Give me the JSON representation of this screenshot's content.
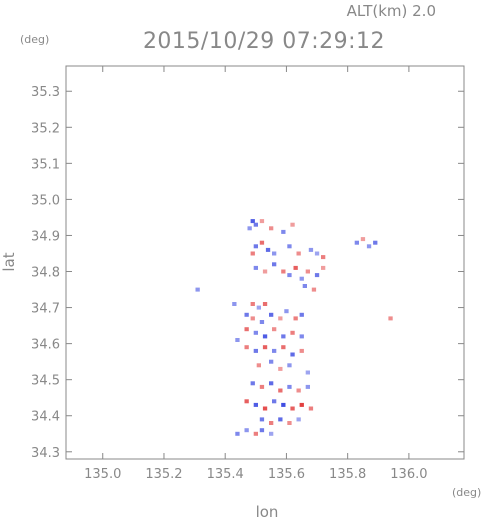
{
  "chart_data": {
    "type": "heatmap",
    "title": "2015/10/29 07:29:12",
    "subtitle": "ALT(km) 2.0",
    "xlabel": "lon",
    "ylabel": "lat",
    "xunit": "(deg)",
    "yunit": "(deg)",
    "xlim": [
      134.88,
      136.18
    ],
    "ylim": [
      34.28,
      35.37
    ],
    "xticks": [
      135.0,
      135.2,
      135.4,
      135.6,
      135.8,
      136.0
    ],
    "xtick_labels": [
      "135.0",
      "135.2",
      "135.4",
      "135.6",
      "135.8",
      "136.0"
    ],
    "yticks": [
      34.3,
      34.4,
      34.5,
      34.6,
      34.7,
      34.8,
      34.9,
      35.0,
      35.1,
      35.2,
      35.3
    ],
    "ytick_labels": [
      "34.3",
      "34.4",
      "34.5",
      "34.6",
      "34.7",
      "34.8",
      "34.9",
      "35.0",
      "35.1",
      "35.2",
      "35.3"
    ],
    "grid": false,
    "colors": {
      "positive": "#e03030",
      "negative": "#3040e0",
      "axis": "#888888"
    },
    "cell_size": [
      0.014,
      0.011
    ],
    "cells": [
      {
        "lon": 135.49,
        "lat": 34.94,
        "v": -0.8
      },
      {
        "lon": 135.5,
        "lat": 34.93,
        "v": -0.6
      },
      {
        "lon": 135.52,
        "lat": 34.94,
        "v": 0.3
      },
      {
        "lon": 135.48,
        "lat": 34.92,
        "v": -0.4
      },
      {
        "lon": 135.55,
        "lat": 34.92,
        "v": 0.4
      },
      {
        "lon": 135.59,
        "lat": 34.91,
        "v": -0.5
      },
      {
        "lon": 135.62,
        "lat": 34.93,
        "v": 0.3
      },
      {
        "lon": 135.5,
        "lat": 34.87,
        "v": -0.6
      },
      {
        "lon": 135.52,
        "lat": 34.88,
        "v": 0.6
      },
      {
        "lon": 135.54,
        "lat": 34.86,
        "v": -0.7
      },
      {
        "lon": 135.49,
        "lat": 34.85,
        "v": 0.5
      },
      {
        "lon": 135.56,
        "lat": 34.85,
        "v": -0.4
      },
      {
        "lon": 135.61,
        "lat": 34.87,
        "v": -0.5
      },
      {
        "lon": 135.64,
        "lat": 34.85,
        "v": 0.4
      },
      {
        "lon": 135.68,
        "lat": 34.86,
        "v": -0.4
      },
      {
        "lon": 135.7,
        "lat": 34.85,
        "v": -0.3
      },
      {
        "lon": 135.72,
        "lat": 34.84,
        "v": 0.5
      },
      {
        "lon": 135.5,
        "lat": 34.81,
        "v": -0.5
      },
      {
        "lon": 135.53,
        "lat": 34.8,
        "v": 0.3
      },
      {
        "lon": 135.56,
        "lat": 34.82,
        "v": -0.6
      },
      {
        "lon": 135.59,
        "lat": 34.8,
        "v": 0.5
      },
      {
        "lon": 135.61,
        "lat": 34.79,
        "v": -0.5
      },
      {
        "lon": 135.63,
        "lat": 34.81,
        "v": 0.7
      },
      {
        "lon": 135.65,
        "lat": 34.78,
        "v": -0.4
      },
      {
        "lon": 135.67,
        "lat": 34.8,
        "v": 0.4
      },
      {
        "lon": 135.7,
        "lat": 34.79,
        "v": -0.6
      },
      {
        "lon": 135.72,
        "lat": 34.81,
        "v": 0.3
      },
      {
        "lon": 135.66,
        "lat": 34.76,
        "v": -0.5
      },
      {
        "lon": 135.69,
        "lat": 34.75,
        "v": 0.4
      },
      {
        "lon": 135.83,
        "lat": 34.88,
        "v": -0.5
      },
      {
        "lon": 135.85,
        "lat": 34.89,
        "v": 0.3
      },
      {
        "lon": 135.87,
        "lat": 34.87,
        "v": -0.4
      },
      {
        "lon": 135.89,
        "lat": 34.88,
        "v": -0.6
      },
      {
        "lon": 135.31,
        "lat": 34.75,
        "v": -0.4
      },
      {
        "lon": 135.94,
        "lat": 34.67,
        "v": 0.4
      },
      {
        "lon": 135.43,
        "lat": 34.71,
        "v": -0.4
      },
      {
        "lon": 135.49,
        "lat": 34.71,
        "v": 0.5
      },
      {
        "lon": 135.51,
        "lat": 34.7,
        "v": -0.3
      },
      {
        "lon": 135.53,
        "lat": 34.71,
        "v": 0.6
      },
      {
        "lon": 135.47,
        "lat": 34.68,
        "v": -0.6
      },
      {
        "lon": 135.49,
        "lat": 34.67,
        "v": 0.4
      },
      {
        "lon": 135.52,
        "lat": 34.66,
        "v": -0.5
      },
      {
        "lon": 135.55,
        "lat": 34.68,
        "v": -0.7
      },
      {
        "lon": 135.58,
        "lat": 34.67,
        "v": 0.3
      },
      {
        "lon": 135.6,
        "lat": 34.69,
        "v": -0.4
      },
      {
        "lon": 135.63,
        "lat": 34.67,
        "v": 0.5
      },
      {
        "lon": 135.65,
        "lat": 34.68,
        "v": -0.6
      },
      {
        "lon": 135.47,
        "lat": 34.64,
        "v": 0.6
      },
      {
        "lon": 135.5,
        "lat": 34.63,
        "v": -0.5
      },
      {
        "lon": 135.53,
        "lat": 34.62,
        "v": -0.8
      },
      {
        "lon": 135.56,
        "lat": 34.64,
        "v": 0.4
      },
      {
        "lon": 135.59,
        "lat": 34.62,
        "v": -0.6
      },
      {
        "lon": 135.62,
        "lat": 34.63,
        "v": 0.5
      },
      {
        "lon": 135.65,
        "lat": 34.62,
        "v": -0.5
      },
      {
        "lon": 135.44,
        "lat": 34.61,
        "v": -0.4
      },
      {
        "lon": 135.47,
        "lat": 34.59,
        "v": 0.5
      },
      {
        "lon": 135.5,
        "lat": 34.58,
        "v": -0.6
      },
      {
        "lon": 135.53,
        "lat": 34.59,
        "v": 0.7
      },
      {
        "lon": 135.56,
        "lat": 34.58,
        "v": -0.5
      },
      {
        "lon": 135.59,
        "lat": 34.59,
        "v": 0.6
      },
      {
        "lon": 135.62,
        "lat": 34.57,
        "v": -0.7
      },
      {
        "lon": 135.65,
        "lat": 34.58,
        "v": 0.4
      },
      {
        "lon": 135.51,
        "lat": 34.54,
        "v": 0.4
      },
      {
        "lon": 135.55,
        "lat": 34.55,
        "v": -0.5
      },
      {
        "lon": 135.58,
        "lat": 34.53,
        "v": 0.3
      },
      {
        "lon": 135.61,
        "lat": 34.54,
        "v": -0.4
      },
      {
        "lon": 135.67,
        "lat": 34.52,
        "v": -0.3
      },
      {
        "lon": 135.49,
        "lat": 34.49,
        "v": -0.6
      },
      {
        "lon": 135.52,
        "lat": 34.48,
        "v": 0.5
      },
      {
        "lon": 135.55,
        "lat": 34.49,
        "v": -0.7
      },
      {
        "lon": 135.58,
        "lat": 34.47,
        "v": 0.6
      },
      {
        "lon": 135.61,
        "lat": 34.48,
        "v": -0.5
      },
      {
        "lon": 135.64,
        "lat": 34.47,
        "v": 0.4
      },
      {
        "lon": 135.67,
        "lat": 34.48,
        "v": -0.4
      },
      {
        "lon": 135.47,
        "lat": 34.44,
        "v": 0.7
      },
      {
        "lon": 135.5,
        "lat": 34.43,
        "v": -0.8
      },
      {
        "lon": 135.53,
        "lat": 34.42,
        "v": 0.8
      },
      {
        "lon": 135.56,
        "lat": 34.44,
        "v": -0.6
      },
      {
        "lon": 135.59,
        "lat": 34.43,
        "v": -0.9
      },
      {
        "lon": 135.62,
        "lat": 34.42,
        "v": 0.7
      },
      {
        "lon": 135.65,
        "lat": 34.43,
        "v": 0.9
      },
      {
        "lon": 135.68,
        "lat": 34.42,
        "v": 0.5
      },
      {
        "lon": 135.52,
        "lat": 34.39,
        "v": -0.6
      },
      {
        "lon": 135.55,
        "lat": 34.38,
        "v": 0.5
      },
      {
        "lon": 135.58,
        "lat": 34.39,
        "v": -0.7
      },
      {
        "lon": 135.61,
        "lat": 34.38,
        "v": 0.4
      },
      {
        "lon": 135.64,
        "lat": 34.39,
        "v": -0.3
      },
      {
        "lon": 135.44,
        "lat": 34.35,
        "v": -0.5
      },
      {
        "lon": 135.47,
        "lat": 34.36,
        "v": -0.4
      },
      {
        "lon": 135.5,
        "lat": 34.35,
        "v": 0.5
      },
      {
        "lon": 135.52,
        "lat": 34.36,
        "v": -0.6
      },
      {
        "lon": 135.55,
        "lat": 34.35,
        "v": -0.3
      }
    ]
  }
}
